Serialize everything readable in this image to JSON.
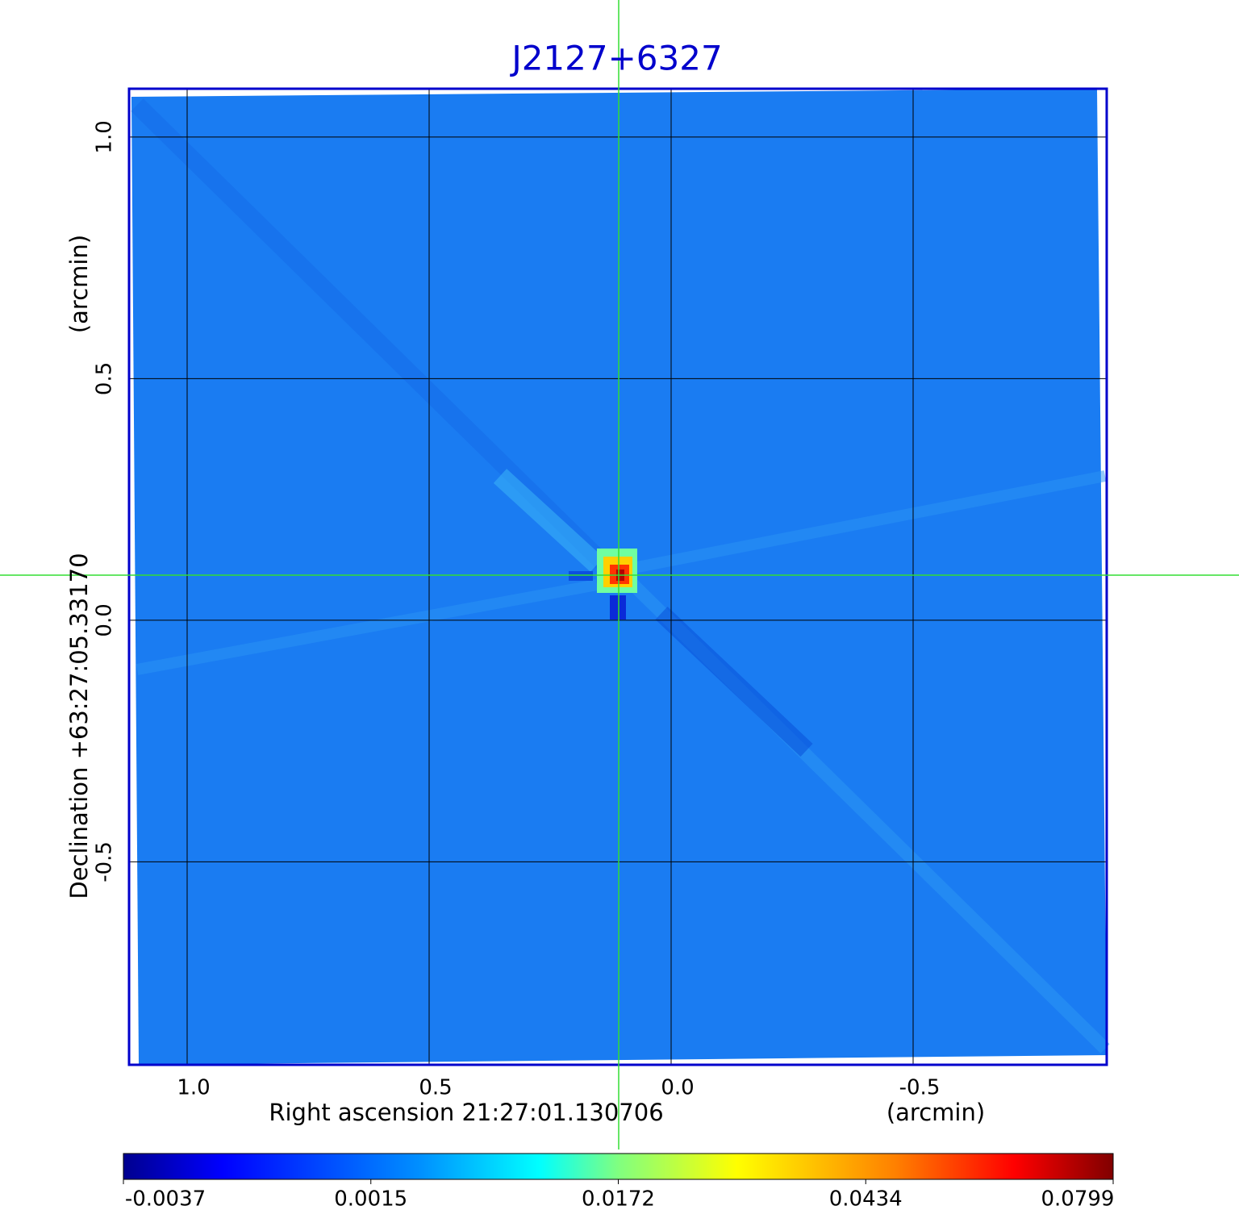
{
  "chart_data": {
    "type": "image",
    "title": "J2127+6327",
    "xlabel": "Right ascension  21:27:01.130706",
    "xunit": "(arcmin)",
    "ylabel": "Declination  +63:27:05.33170",
    "yunit": "(arcmin)",
    "xlim": [
      1.12,
      -0.9
    ],
    "ylim": [
      -0.92,
      1.1
    ],
    "xticks": [
      {
        "value": 1,
        "label": "1.0"
      },
      0.5,
      {
        "value": 0,
        "label": "0.0"
      },
      -0.5
    ],
    "yticks": [
      {
        "value": 1,
        "label": "1.0"
      },
      0.5,
      {
        "value": 0,
        "label": "0.0"
      },
      -0.5
    ],
    "grid": true,
    "colorbar_ticks": [
      -0.0037,
      0.0015,
      0.0172,
      0.0434,
      0.0799
    ]
  }
}
